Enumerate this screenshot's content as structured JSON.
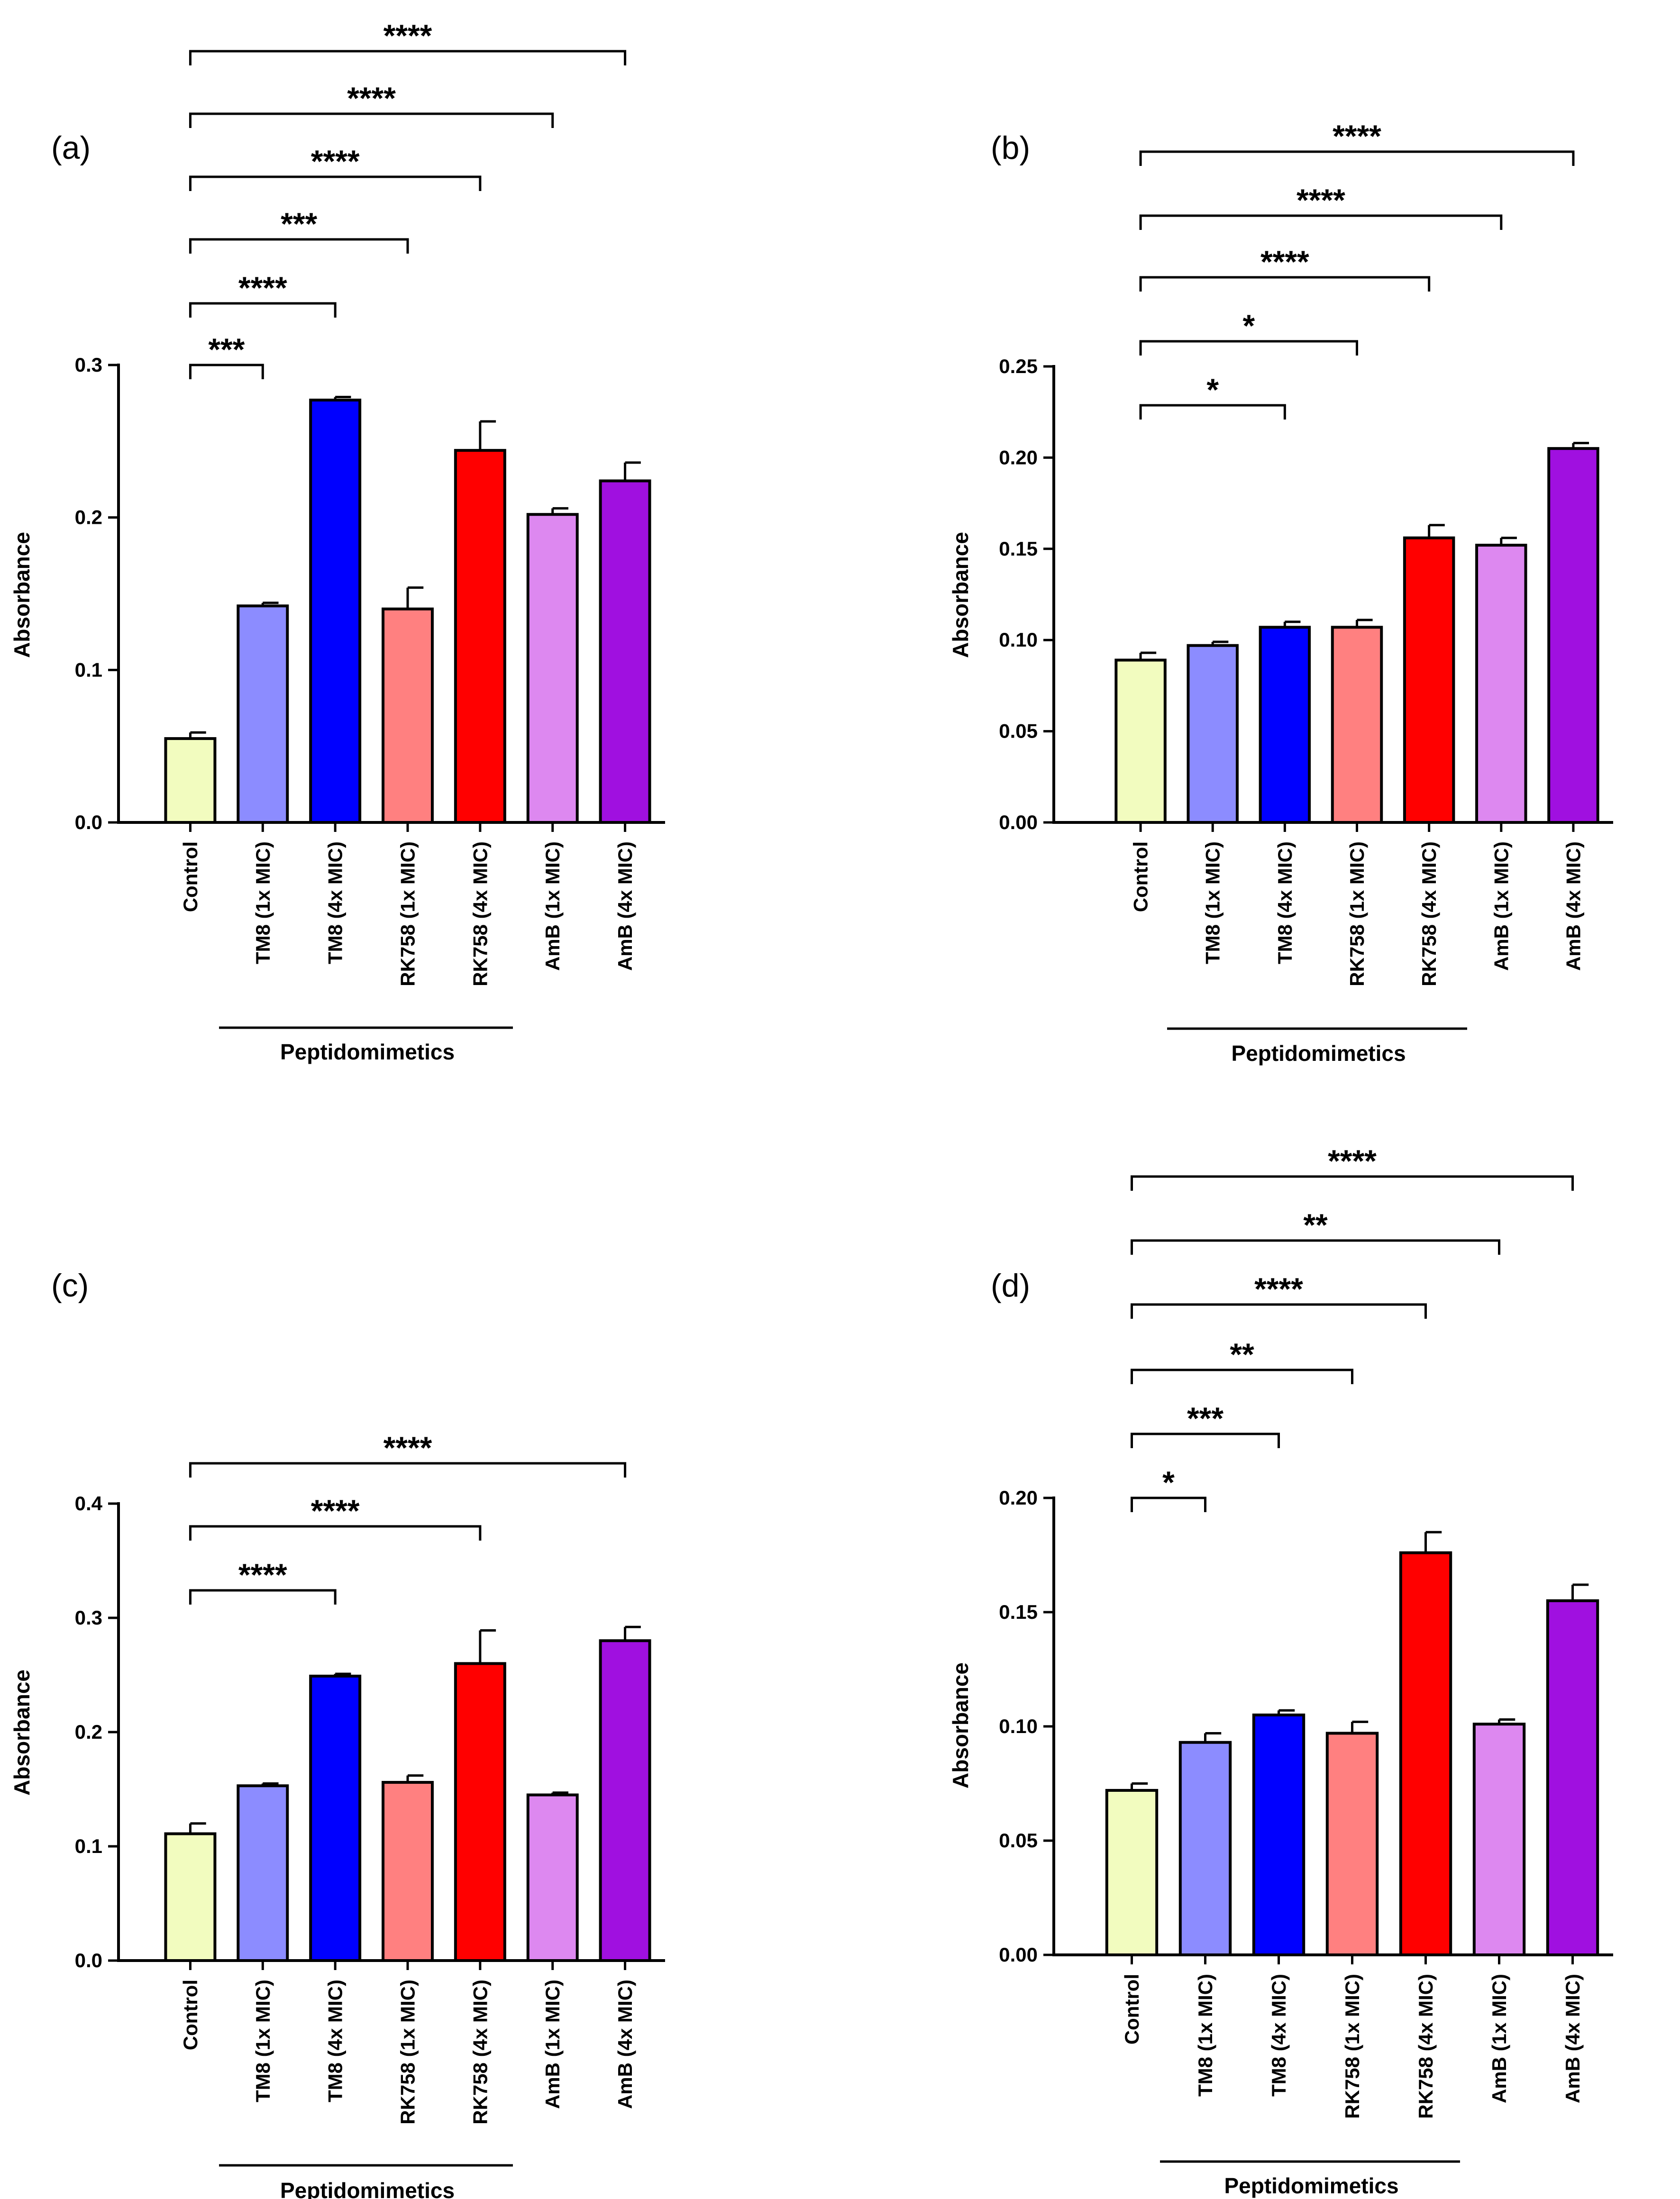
{
  "chart_data": [
    {
      "type": "bar",
      "panel_label": "(a)",
      "categories": [
        "Control",
        "TM8 (1x MIC)",
        "TM8 (4x MIC)",
        "RK758 (1x MIC)",
        "RK758 (4x MIC)",
        "AmB (1x MIC)",
        "AmB (4x MIC)"
      ],
      "values": [
        0.055,
        0.142,
        0.277,
        0.14,
        0.244,
        0.202,
        0.224
      ],
      "errors": [
        0.004,
        0.002,
        0.002,
        0.014,
        0.019,
        0.004,
        0.012
      ],
      "colors": [
        "#f2fcbf",
        "#8c8cff",
        "#0000ff",
        "#ff8080",
        "#ff0000",
        "#dd88f0",
        "#a010e0"
      ],
      "ylabel": "Absorbance",
      "ylim": [
        0,
        0.3
      ],
      "yticks": [
        "0.0",
        "0.1",
        "0.2",
        "0.3"
      ],
      "group_label": "Peptidomimetics",
      "significance": [
        {
          "from": "Control",
          "to": "TM8 (1x MIC)",
          "label": "***"
        },
        {
          "from": "Control",
          "to": "TM8 (4x MIC)",
          "label": "****"
        },
        {
          "from": "Control",
          "to": "RK758 (1x MIC)",
          "label": "***"
        },
        {
          "from": "Control",
          "to": "RK758 (4x MIC)",
          "label": "****"
        },
        {
          "from": "Control",
          "to": "AmB (1x MIC)",
          "label": "****"
        },
        {
          "from": "Control",
          "to": "AmB (4x MIC)",
          "label": "****"
        }
      ]
    },
    {
      "type": "bar",
      "panel_label": "(b)",
      "categories": [
        "Control",
        "TM8 (1x MIC)",
        "TM8 (4x MIC)",
        "RK758 (1x MIC)",
        "RK758 (4x MIC)",
        "AmB (1x MIC)",
        "AmB (4x MIC)"
      ],
      "values": [
        0.089,
        0.097,
        0.107,
        0.107,
        0.156,
        0.152,
        0.205
      ],
      "errors": [
        0.004,
        0.002,
        0.003,
        0.004,
        0.007,
        0.004,
        0.003
      ],
      "colors": [
        "#f2fcbf",
        "#8c8cff",
        "#0000ff",
        "#ff8080",
        "#ff0000",
        "#dd88f0",
        "#a010e0"
      ],
      "ylabel": "Absorbance",
      "ylim": [
        0,
        0.25
      ],
      "yticks": [
        "0.00",
        "0.05",
        "0.10",
        "0.15",
        "0.20",
        "0.25"
      ],
      "group_label": "Peptidomimetics",
      "significance": [
        {
          "from": "Control",
          "to": "TM8 (4x MIC)",
          "label": "*"
        },
        {
          "from": "Control",
          "to": "RK758 (1x MIC)",
          "label": "*"
        },
        {
          "from": "Control",
          "to": "RK758 (4x MIC)",
          "label": "****"
        },
        {
          "from": "Control",
          "to": "AmB (1x MIC)",
          "label": "****"
        },
        {
          "from": "Control",
          "to": "AmB (4x MIC)",
          "label": "****"
        }
      ]
    },
    {
      "type": "bar",
      "panel_label": "(c)",
      "categories": [
        "Control",
        "TM8 (1x MIC)",
        "TM8 (4x MIC)",
        "RK758 (1x MIC)",
        "RK758 (4x MIC)",
        "AmB (1x MIC)",
        "AmB (4x MIC)"
      ],
      "values": [
        0.111,
        0.153,
        0.249,
        0.156,
        0.26,
        0.145,
        0.28
      ],
      "errors": [
        0.009,
        0.002,
        0.002,
        0.006,
        0.029,
        0.002,
        0.012
      ],
      "colors": [
        "#f2fcbf",
        "#8c8cff",
        "#0000ff",
        "#ff8080",
        "#ff0000",
        "#dd88f0",
        "#a010e0"
      ],
      "ylabel": "Absorbance",
      "ylim": [
        0,
        0.4
      ],
      "yticks": [
        "0.0",
        "0.1",
        "0.2",
        "0.3",
        "0.4"
      ],
      "group_label": "Peptidomimetics",
      "significance": [
        {
          "from": "Control",
          "to": "TM8 (4x MIC)",
          "label": "****"
        },
        {
          "from": "Control",
          "to": "RK758 (4x MIC)",
          "label": "****"
        },
        {
          "from": "Control",
          "to": "AmB (4x MIC)",
          "label": "****"
        }
      ]
    },
    {
      "type": "bar",
      "panel_label": "(d)",
      "categories": [
        "Control",
        "TM8 (1x MIC)",
        "TM8 (4x MIC)",
        "RK758 (1x MIC)",
        "RK758 (4x MIC)",
        "AmB (1x MIC)",
        "AmB (4x MIC)"
      ],
      "values": [
        0.072,
        0.093,
        0.105,
        0.097,
        0.176,
        0.101,
        0.155
      ],
      "errors": [
        0.003,
        0.004,
        0.002,
        0.005,
        0.009,
        0.002,
        0.007
      ],
      "colors": [
        "#f2fcbf",
        "#8c8cff",
        "#0000ff",
        "#ff8080",
        "#ff0000",
        "#dd88f0",
        "#a010e0"
      ],
      "ylabel": "Absorbance",
      "ylim": [
        0,
        0.2
      ],
      "yticks": [
        "0.00",
        "0.05",
        "0.10",
        "0.15",
        "0.20"
      ],
      "group_label": "Peptidomimetics",
      "significance": [
        {
          "from": "Control",
          "to": "TM8 (1x MIC)",
          "label": "*"
        },
        {
          "from": "Control",
          "to": "TM8 (4x MIC)",
          "label": "***"
        },
        {
          "from": "Control",
          "to": "RK758 (1x MIC)",
          "label": "**"
        },
        {
          "from": "Control",
          "to": "RK758 (4x MIC)",
          "label": "****"
        },
        {
          "from": "Control",
          "to": "AmB (1x MIC)",
          "label": "**"
        },
        {
          "from": "Control",
          "to": "AmB (4x MIC)",
          "label": "****"
        }
      ]
    }
  ]
}
